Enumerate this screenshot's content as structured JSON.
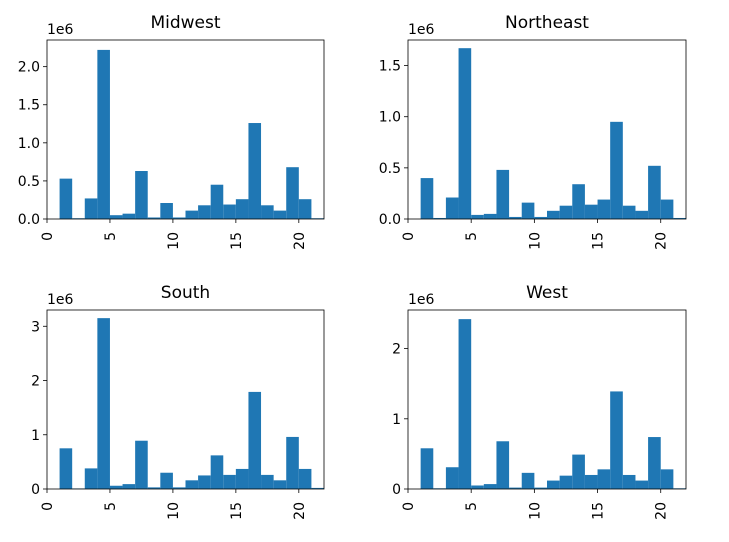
{
  "chart_data": [
    {
      "type": "bar",
      "title": "Midwest",
      "exponent_label": "1e6",
      "xlim": [
        0,
        22
      ],
      "ylim": [
        0,
        2.35
      ],
      "xticks": [
        0,
        5,
        10,
        15,
        20
      ],
      "yticks": [
        0.0,
        0.5,
        1.0,
        1.5,
        2.0
      ],
      "ytick_labels": [
        "0.0",
        "0.5",
        "1.0",
        "1.5",
        "2.0"
      ],
      "bins": [
        [
          1,
          2,
          0.53
        ],
        [
          2,
          3,
          0.01
        ],
        [
          3,
          4,
          0.27
        ],
        [
          4,
          5,
          2.22
        ],
        [
          5,
          6,
          0.05
        ],
        [
          6,
          7,
          0.07
        ],
        [
          7,
          8,
          0.63
        ],
        [
          8,
          9,
          0.02
        ],
        [
          9,
          10,
          0.21
        ],
        [
          10,
          11,
          0.02
        ],
        [
          11,
          12,
          0.11
        ],
        [
          12,
          13,
          0.18
        ],
        [
          13,
          14,
          0.45
        ],
        [
          14,
          15,
          0.19
        ],
        [
          15,
          16,
          0.26
        ],
        [
          16,
          17,
          1.26
        ],
        [
          17,
          18,
          0.18
        ],
        [
          18,
          19,
          0.11
        ],
        [
          19,
          20,
          0.68
        ],
        [
          20,
          21,
          0.26
        ],
        [
          21,
          22,
          0.01
        ]
      ]
    },
    {
      "type": "bar",
      "title": "Northeast",
      "exponent_label": "1e6",
      "xlim": [
        0,
        22
      ],
      "ylim": [
        0,
        1.75
      ],
      "xticks": [
        0,
        5,
        10,
        15,
        20
      ],
      "yticks": [
        0.0,
        0.5,
        1.0,
        1.5
      ],
      "ytick_labels": [
        "0.0",
        "0.5",
        "1.0",
        "1.5"
      ],
      "bins": [
        [
          1,
          2,
          0.4
        ],
        [
          2,
          3,
          0.01
        ],
        [
          3,
          4,
          0.21
        ],
        [
          4,
          5,
          1.67
        ],
        [
          5,
          6,
          0.04
        ],
        [
          6,
          7,
          0.05
        ],
        [
          7,
          8,
          0.48
        ],
        [
          8,
          9,
          0.02
        ],
        [
          9,
          10,
          0.16
        ],
        [
          10,
          11,
          0.02
        ],
        [
          11,
          12,
          0.08
        ],
        [
          12,
          13,
          0.13
        ],
        [
          13,
          14,
          0.34
        ],
        [
          14,
          15,
          0.14
        ],
        [
          15,
          16,
          0.19
        ],
        [
          16,
          17,
          0.95
        ],
        [
          17,
          18,
          0.13
        ],
        [
          18,
          19,
          0.08
        ],
        [
          19,
          20,
          0.52
        ],
        [
          20,
          21,
          0.19
        ],
        [
          21,
          22,
          0.01
        ]
      ]
    },
    {
      "type": "bar",
      "title": "South",
      "exponent_label": "1e6",
      "xlim": [
        0,
        22
      ],
      "ylim": [
        0,
        3.3
      ],
      "xticks": [
        0,
        5,
        10,
        15,
        20
      ],
      "yticks": [
        0,
        1,
        2,
        3
      ],
      "ytick_labels": [
        "0",
        "1",
        "2",
        "3"
      ],
      "bins": [
        [
          1,
          2,
          0.75
        ],
        [
          2,
          3,
          0.01
        ],
        [
          3,
          4,
          0.38
        ],
        [
          4,
          5,
          3.15
        ],
        [
          5,
          6,
          0.06
        ],
        [
          6,
          7,
          0.09
        ],
        [
          7,
          8,
          0.89
        ],
        [
          8,
          9,
          0.03
        ],
        [
          9,
          10,
          0.3
        ],
        [
          10,
          11,
          0.03
        ],
        [
          11,
          12,
          0.16
        ],
        [
          12,
          13,
          0.25
        ],
        [
          13,
          14,
          0.62
        ],
        [
          14,
          15,
          0.26
        ],
        [
          15,
          16,
          0.37
        ],
        [
          16,
          17,
          1.79
        ],
        [
          17,
          18,
          0.26
        ],
        [
          18,
          19,
          0.16
        ],
        [
          19,
          20,
          0.96
        ],
        [
          20,
          21,
          0.37
        ],
        [
          21,
          22,
          0.02
        ]
      ]
    },
    {
      "type": "bar",
      "title": "West",
      "exponent_label": "1e6",
      "xlim": [
        0,
        22
      ],
      "ylim": [
        0,
        2.55
      ],
      "xticks": [
        0,
        5,
        10,
        15,
        20
      ],
      "yticks": [
        0,
        1,
        2
      ],
      "ytick_labels": [
        "0",
        "1",
        "2"
      ],
      "bins": [
        [
          1,
          2,
          0.58
        ],
        [
          2,
          3,
          0.01
        ],
        [
          3,
          4,
          0.31
        ],
        [
          4,
          5,
          2.42
        ],
        [
          5,
          6,
          0.05
        ],
        [
          6,
          7,
          0.07
        ],
        [
          7,
          8,
          0.68
        ],
        [
          8,
          9,
          0.02
        ],
        [
          9,
          10,
          0.23
        ],
        [
          10,
          11,
          0.02
        ],
        [
          11,
          12,
          0.12
        ],
        [
          12,
          13,
          0.19
        ],
        [
          13,
          14,
          0.49
        ],
        [
          14,
          15,
          0.2
        ],
        [
          15,
          16,
          0.28
        ],
        [
          16,
          17,
          1.39
        ],
        [
          17,
          18,
          0.2
        ],
        [
          18,
          19,
          0.12
        ],
        [
          19,
          20,
          0.74
        ],
        [
          20,
          21,
          0.28
        ],
        [
          21,
          22,
          0.01
        ]
      ]
    }
  ],
  "colors": {
    "bar": "#1f77b4",
    "axes": "#000000",
    "background": "#ffffff"
  }
}
